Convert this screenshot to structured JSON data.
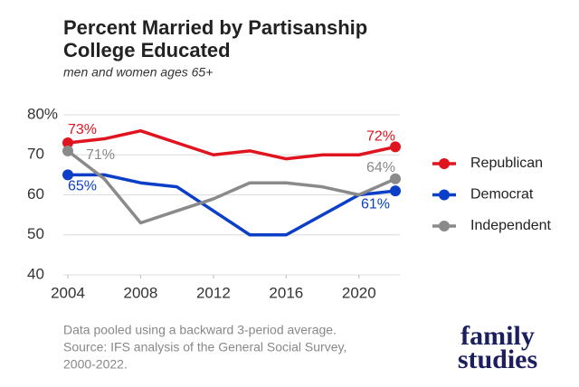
{
  "chart_data": {
    "type": "line",
    "title": [
      "Percent Married by Partisanship",
      "College Educated"
    ],
    "subtitle": "men and women ages 65+",
    "x": [
      2004,
      2006,
      2008,
      2010,
      2012,
      2014,
      2016,
      2018,
      2020,
      2022
    ],
    "xlim": [
      2004,
      2022
    ],
    "xticks": [
      2004,
      2008,
      2012,
      2016,
      2020
    ],
    "ylim": [
      40,
      80
    ],
    "yticks": [
      40,
      50,
      60,
      70,
      {
        "value": 80,
        "label": "80%"
      }
    ],
    "grid": true,
    "legend": "right",
    "series": [
      {
        "name": "Republican",
        "color": "#e0141e",
        "values": [
          73,
          74,
          76,
          73,
          70,
          71,
          69,
          70,
          70,
          72
        ],
        "value_labels": [
          "73%",
          null,
          null,
          null,
          null,
          null,
          null,
          null,
          null,
          "72%"
        ]
      },
      {
        "name": "Democrat",
        "color": "#0b3fc8",
        "values": [
          65,
          65,
          63,
          62,
          56,
          50,
          50,
          55,
          60,
          61
        ],
        "value_labels": [
          "65%",
          null,
          null,
          null,
          null,
          null,
          null,
          null,
          null,
          "61%"
        ]
      },
      {
        "name": "Independent",
        "color": "#8a8a8a",
        "values": [
          71,
          64,
          53,
          56,
          59,
          63,
          63,
          62,
          60,
          64
        ],
        "value_labels": [
          "71%",
          null,
          null,
          null,
          null,
          null,
          null,
          null,
          null,
          "64%"
        ]
      }
    ],
    "note": [
      "Data pooled using a backward 3-period average.",
      "Source: IFS analysis of the General Social Survey,",
      "2000-2022."
    ],
    "logo": [
      "family",
      "studies"
    ]
  }
}
